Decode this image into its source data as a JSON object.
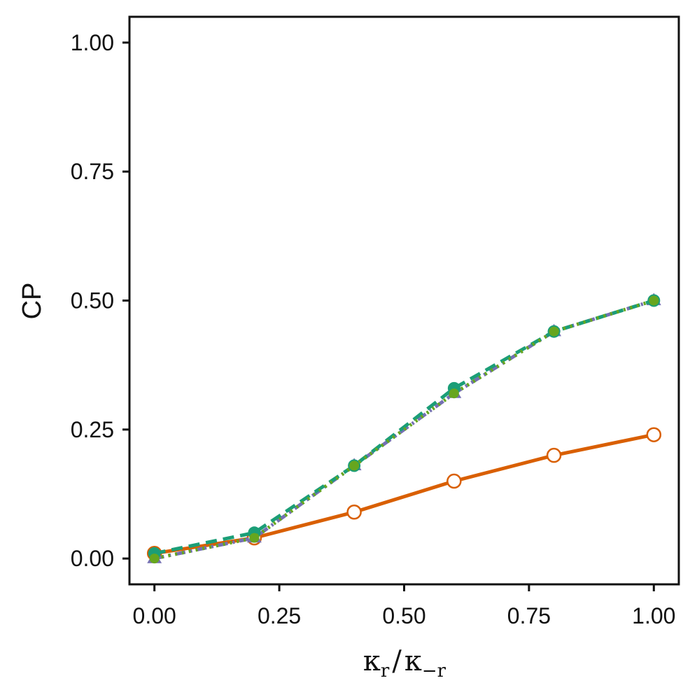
{
  "chart_data": {
    "type": "line",
    "title": "",
    "xlabel": {
      "base1": "κ",
      "sub1": "r",
      "slash": "/",
      "base2": "κ",
      "sub2": "−r"
    },
    "ylabel": "CP",
    "xlim": [
      -0.05,
      1.05
    ],
    "ylim": [
      -0.05,
      1.05
    ],
    "xticks": [
      0.0,
      0.25,
      0.5,
      0.75,
      1.0
    ],
    "xtick_labels": [
      "0.00",
      "0.25",
      "0.50",
      "0.75",
      "1.00"
    ],
    "yticks": [
      0.0,
      0.25,
      0.5,
      0.75,
      1.0
    ],
    "ytick_labels": [
      "0.00",
      "0.25",
      "0.50",
      "0.75",
      "1.00"
    ],
    "grid": false,
    "legend": "none",
    "x": [
      0.0,
      0.2,
      0.4,
      0.6,
      0.8,
      1.0
    ],
    "series": [
      {
        "values": [
          0.01,
          0.04,
          0.09,
          0.15,
          0.2,
          0.24
        ],
        "color": "#d95f02",
        "line": "solid",
        "marker": "open-circle"
      },
      {
        "values": [
          0.0,
          0.04,
          0.18,
          0.32,
          0.44,
          0.5
        ],
        "color": "#7570b3",
        "line": "dashdot",
        "marker": "triangle"
      },
      {
        "values": [
          0.01,
          0.05,
          0.18,
          0.33,
          0.44,
          0.5
        ],
        "color": "#1b9e77",
        "line": "dashed",
        "marker": "filled-circle"
      },
      {
        "values": [
          0.0,
          0.04,
          0.18,
          0.32,
          0.44,
          0.5
        ],
        "color": "#66a61e",
        "line": "dotted",
        "marker": "small-filled-circle"
      }
    ]
  }
}
